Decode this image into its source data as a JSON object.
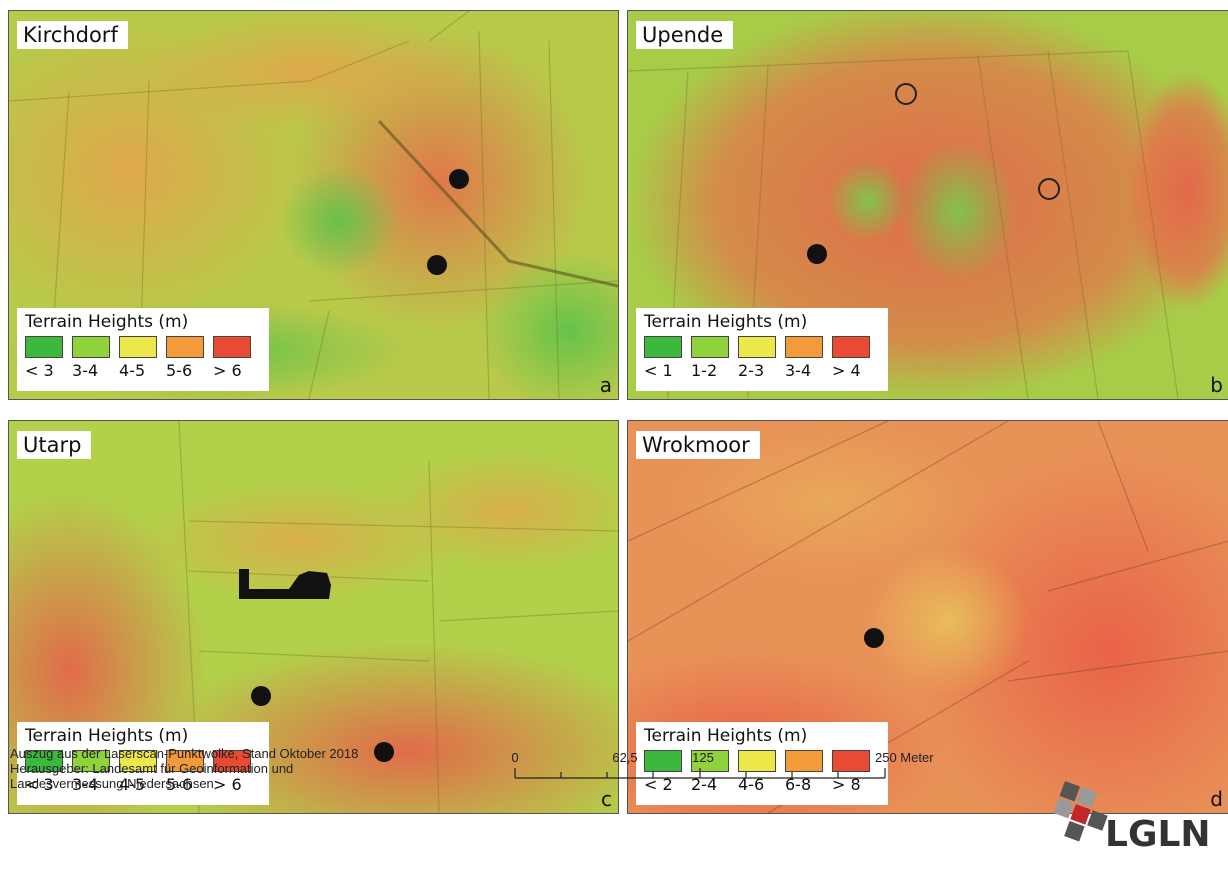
{
  "panels": [
    {
      "title": "Kirchdorf",
      "letter": "a",
      "legend": {
        "title": "Terrain Heights (m)",
        "classes": [
          "< 3",
          "3-4",
          "4-5",
          "5-6",
          "> 6"
        ]
      }
    },
    {
      "title": "Upende",
      "letter": "b",
      "legend": {
        "title": "Terrain Heights (m)",
        "classes": [
          "< 1",
          "1-2",
          "2-3",
          "3-4",
          "> 4"
        ]
      }
    },
    {
      "title": "Utarp",
      "letter": "c",
      "legend": {
        "title": "Terrain Heights (m)",
        "classes": [
          "< 3",
          "3-4",
          "4-5",
          "5-6",
          "> 6"
        ]
      }
    },
    {
      "title": "Wrokmoor",
      "letter": "d",
      "legend": {
        "title": "Terrain Heights (m)",
        "classes": [
          "< 2",
          "2-4",
          "4-6",
          "6-8",
          "> 8"
        ]
      }
    }
  ],
  "legend_colors": [
    "#3cb83c",
    "#8fd23c",
    "#ece84a",
    "#f39a3a",
    "#e84a32"
  ],
  "footer": {
    "line1": "Auszug aus der Laserscan-Punktwolke, Stand Oktober 2018",
    "line2": "Herausgeber: Landesamt für Geoinformation und",
    "line3": "Landesvermessung Niedersachsen"
  },
  "scalebar": {
    "ticks": [
      "0",
      "62,5",
      "125",
      "250 Meter"
    ]
  },
  "logo": {
    "text": "LGLN"
  }
}
